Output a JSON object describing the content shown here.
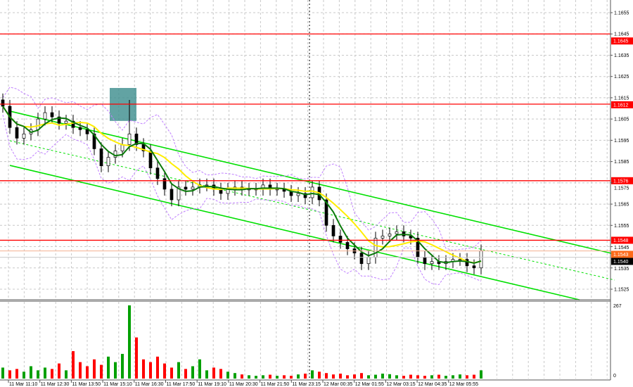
{
  "chart_data": {
    "type": "candlestick",
    "title": "",
    "price_axis": {
      "range": [
        1.152,
        1.1661
      ],
      "ticks": [
        "1.1655",
        "1.1645",
        "1.1635",
        "1.1625",
        "1.1615",
        "1.1605",
        "1.1595",
        "1.1585",
        "1.1575",
        "1.1565",
        "1.1555",
        "1.1545",
        "1.1535",
        "1.1525"
      ]
    },
    "time_axis": {
      "ticks": [
        "11 Mar 11:10",
        "11 Mar 12:30",
        "11 Mar 13:50",
        "11 Mar 15:10",
        "11 Mar 16:30",
        "11 Mar 17:50",
        "11 Mar 19:10",
        "11 Mar 20:30",
        "11 Mar 21:50",
        "11 Mar 23:15",
        "12 Mar 00:35",
        "12 Mar 01:55",
        "12 Mar 03:15",
        "12 Mar 04:35",
        "12 Mar 05:55"
      ]
    },
    "closes": [
      1.1611,
      1.1601,
      1.1596,
      1.1598,
      1.16,
      1.1605,
      1.1608,
      1.1606,
      1.1603,
      1.1604,
      1.1601,
      1.16,
      1.1598,
      1.1591,
      1.1583,
      1.1587,
      1.159,
      1.1593,
      1.1598,
      1.1593,
      1.159,
      1.1582,
      1.1577,
      1.1572,
      1.1567,
      1.1573,
      1.1572,
      1.1573,
      1.1574,
      1.1574,
      1.1572,
      1.157,
      1.1572,
      1.1573,
      1.1572,
      1.1572,
      1.1572,
      1.1574,
      1.1572,
      1.1572,
      1.1571,
      1.1569,
      1.157,
      1.1568,
      1.1573,
      1.1567,
      1.1555,
      1.155,
      1.1547,
      1.1544,
      1.1542,
      1.1537,
      1.154,
      1.1549,
      1.155,
      1.1551,
      1.1552,
      1.155,
      1.1549,
      1.154,
      1.1537,
      1.1538,
      1.1537,
      1.1538,
      1.1539,
      1.1539,
      1.1536,
      1.1535,
      1.1543
    ],
    "spike_high": {
      "index": 18,
      "price": 1.1614
    },
    "volume": {
      "max_label": "267",
      "zero_label": "0",
      "max": 267,
      "values": [
        40,
        30,
        35,
        25,
        45,
        30,
        40,
        35,
        55,
        30,
        100,
        60,
        45,
        70,
        50,
        80,
        60,
        90,
        267,
        150,
        70,
        60,
        80,
        55,
        40,
        60,
        35,
        45,
        70,
        30,
        40,
        35,
        25,
        20,
        15,
        12,
        10,
        12,
        14,
        10,
        12,
        10,
        15,
        18,
        30,
        25,
        20,
        15,
        18,
        12,
        15,
        20,
        12,
        14,
        18,
        16,
        12,
        10,
        14,
        12,
        10,
        12,
        14,
        10,
        12,
        15,
        12,
        14,
        30
      ]
    },
    "levels": [
      {
        "price": 1.1645,
        "label": "1.1645",
        "color": "#ff0000"
      },
      {
        "price": 1.1612,
        "label": "1.1612",
        "color": "#ff0000"
      },
      {
        "price": 1.1576,
        "label": "1.1576",
        "color": "#ff0000"
      },
      {
        "price": 1.1548,
        "label": "1.1548",
        "color": "#ff0000"
      }
    ],
    "ask_line": {
      "price": 1.1543,
      "label": "1.1543",
      "color": "#ff6a1a"
    },
    "bid_line": {
      "price": 1.154,
      "label": "1.1540",
      "color": "#000000"
    },
    "channel": {
      "upper": {
        "from": [
          1,
          1.16087
        ],
        "to": [
          87,
          1.15415
        ]
      },
      "lower": {
        "from": [
          1,
          1.15832
        ],
        "to": [
          82,
          1.152
        ]
      },
      "middle": {
        "from": [
          1,
          1.15948
        ],
        "to": [
          87,
          1.15293
        ]
      },
      "color": "#00e000"
    },
    "zone": {
      "from_index": 15.2,
      "to_index": 19,
      "top": 1.16196,
      "bottom": 1.16041,
      "color": "#3f8f8f"
    },
    "ma_fast_color": "#0a7a0a",
    "ma_slow_color": "#ffee00",
    "envelope_color": "#c080ff",
    "up_color": "#00a000",
    "down_color": "#ff0000",
    "grid": true
  }
}
